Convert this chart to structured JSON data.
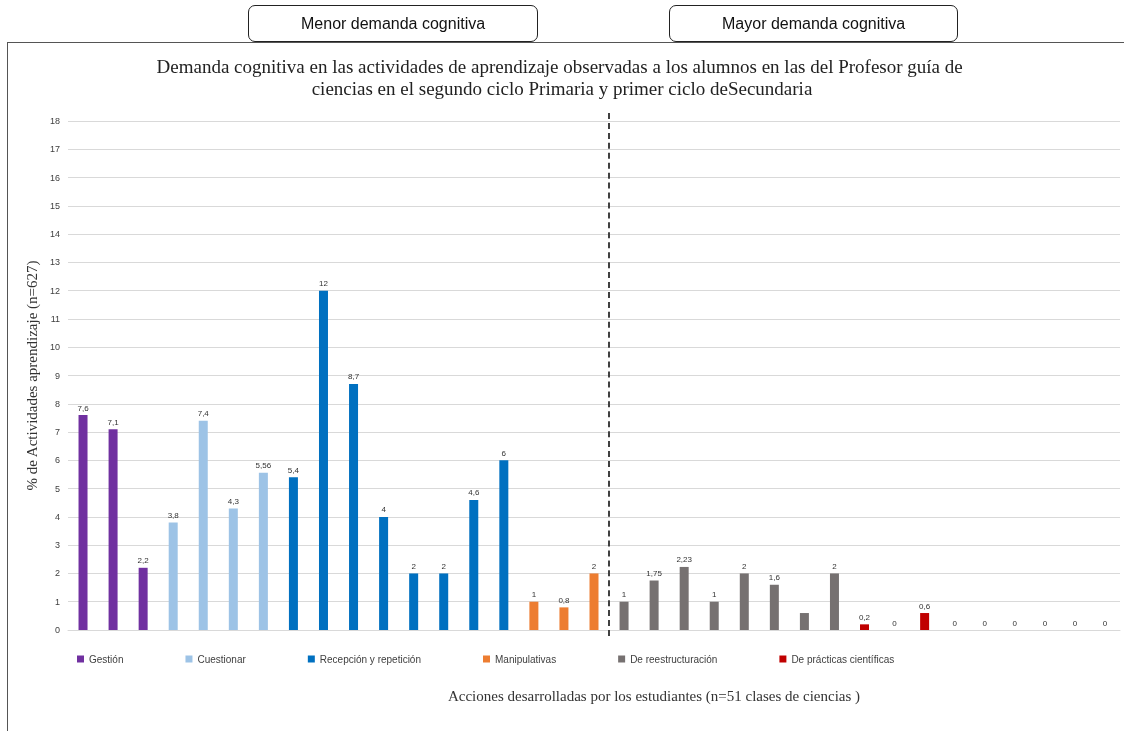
{
  "chart_data": {
    "type": "bar",
    "title": "Demanda cognitiva en las actividades de aprendizaje observadas a los alumnos en las del Profesor guía de ciencias en el segundo ciclo Primaria y primer ciclo deSecundaria",
    "xlabel": "Acciones desarrolladas por los estudiantes (n=51 clases de ciencias )",
    "ylabel": "% de Actividades aprendizaje (n=627)",
    "annotations": [
      "Menor demanda cognitiva",
      "Mayor demanda cognitiva"
    ],
    "categories": [
      null,
      null,
      null,
      null,
      null,
      null,
      null,
      null,
      null,
      null,
      null,
      null,
      null,
      null,
      null,
      null,
      null,
      null,
      null,
      null,
      null,
      null,
      null,
      null,
      null,
      null,
      null,
      null,
      null,
      null,
      null,
      null,
      null,
      null,
      null
    ],
    "series": [
      {
        "name": "Gestión",
        "color": "#7030a0",
        "values": [
          7.6,
          7.1,
          2.2,
          null,
          null,
          null,
          null,
          null,
          null,
          null,
          null,
          null,
          null,
          null,
          null,
          null,
          null,
          null,
          null,
          null,
          null,
          null,
          null,
          null,
          null,
          null,
          null,
          null,
          null,
          null,
          null,
          null,
          null,
          null,
          null
        ],
        "value_labels": [
          "7,6",
          "7,1",
          "2,2",
          null,
          null,
          null,
          null,
          null,
          null,
          null,
          null,
          null,
          null,
          null,
          null,
          null,
          null,
          null,
          null,
          null,
          null,
          null,
          null,
          null,
          null,
          null,
          null,
          null,
          null,
          null,
          null,
          null,
          null,
          null,
          null
        ]
      },
      {
        "name": "Cuestionar",
        "color": "#9dc3e6",
        "values": [
          null,
          null,
          null,
          3.8,
          7.4,
          4.3,
          5.56,
          null,
          null,
          null,
          null,
          null,
          null,
          null,
          null,
          null,
          null,
          null,
          null,
          null,
          null,
          null,
          null,
          null,
          null,
          null,
          null,
          null,
          null,
          null,
          null,
          null,
          null,
          null,
          null
        ],
        "value_labels": [
          null,
          null,
          null,
          "3,8",
          "7,4",
          "4,3",
          "5,56",
          null,
          null,
          null,
          null,
          null,
          null,
          null,
          null,
          null,
          null,
          null,
          null,
          null,
          null,
          null,
          null,
          null,
          null,
          null,
          null,
          null,
          null,
          null,
          null,
          null,
          null,
          null,
          null
        ]
      },
      {
        "name": "Recepción y repetición",
        "color": "#0070c0",
        "values": [
          null,
          null,
          null,
          null,
          null,
          null,
          null,
          5.4,
          12,
          8.7,
          4,
          2,
          2,
          4.6,
          6,
          null,
          null,
          null,
          null,
          null,
          null,
          null,
          null,
          null,
          null,
          null,
          null,
          null,
          null,
          null,
          null,
          null,
          null,
          null,
          null
        ],
        "value_labels": [
          null,
          null,
          null,
          null,
          null,
          null,
          null,
          "5,4",
          "12",
          "8,7",
          "4",
          "2",
          "2",
          "4,6",
          "6",
          null,
          null,
          null,
          null,
          null,
          null,
          null,
          null,
          null,
          null,
          null,
          null,
          null,
          null,
          null,
          null,
          null,
          null,
          null,
          null
        ]
      },
      {
        "name": "Manipulativas",
        "color": "#ed7d31",
        "values": [
          null,
          null,
          null,
          null,
          null,
          null,
          null,
          null,
          null,
          null,
          null,
          null,
          null,
          null,
          null,
          1,
          0.8,
          2,
          null,
          null,
          null,
          null,
          null,
          null,
          null,
          null,
          null,
          null,
          null,
          null,
          null,
          null,
          null,
          null,
          null
        ],
        "value_labels": [
          null,
          null,
          null,
          null,
          null,
          null,
          null,
          null,
          null,
          null,
          null,
          null,
          null,
          null,
          null,
          "1",
          "0,8",
          "2",
          null,
          null,
          null,
          null,
          null,
          null,
          null,
          null,
          null,
          null,
          null,
          null,
          null,
          null,
          null,
          null,
          null
        ]
      },
      {
        "name": "De reestructuración",
        "color": "#767171",
        "values": [
          null,
          null,
          null,
          null,
          null,
          null,
          null,
          null,
          null,
          null,
          null,
          null,
          null,
          null,
          null,
          null,
          null,
          null,
          1,
          1.75,
          2.23,
          1,
          2,
          1.6,
          0.6,
          2,
          null,
          null,
          null,
          null,
          null,
          null,
          null,
          null,
          null
        ],
        "value_labels": [
          null,
          null,
          null,
          null,
          null,
          null,
          null,
          null,
          null,
          null,
          null,
          null,
          null,
          null,
          null,
          null,
          null,
          null,
          "1",
          "1,75",
          "2,23",
          "1",
          "2",
          "1,6",
          null,
          "2",
          null,
          null,
          null,
          null,
          null,
          null,
          null,
          null,
          null
        ]
      },
      {
        "name": "De prácticas científicas",
        "color": "#c00000",
        "values": [
          null,
          null,
          null,
          null,
          null,
          null,
          null,
          null,
          null,
          null,
          null,
          null,
          null,
          null,
          null,
          null,
          null,
          null,
          null,
          null,
          null,
          null,
          null,
          null,
          null,
          null,
          0.2,
          0,
          0.6,
          0,
          0,
          0,
          0,
          0,
          0
        ],
        "value_labels": [
          null,
          null,
          null,
          null,
          null,
          null,
          null,
          null,
          null,
          null,
          null,
          null,
          null,
          null,
          null,
          null,
          null,
          null,
          null,
          null,
          null,
          null,
          null,
          null,
          null,
          null,
          "0,2",
          "0",
          "0,6",
          "0",
          "0",
          "0",
          "0",
          "0",
          "0"
        ]
      }
    ],
    "ylim": [
      0,
      18
    ],
    "yticks": [
      0,
      1,
      2,
      3,
      4,
      5,
      6,
      7,
      8,
      9,
      10,
      11,
      12,
      13,
      14,
      15,
      16,
      17,
      18
    ],
    "grid": "y",
    "legend": "bottom",
    "tick_labels": "y"
  }
}
